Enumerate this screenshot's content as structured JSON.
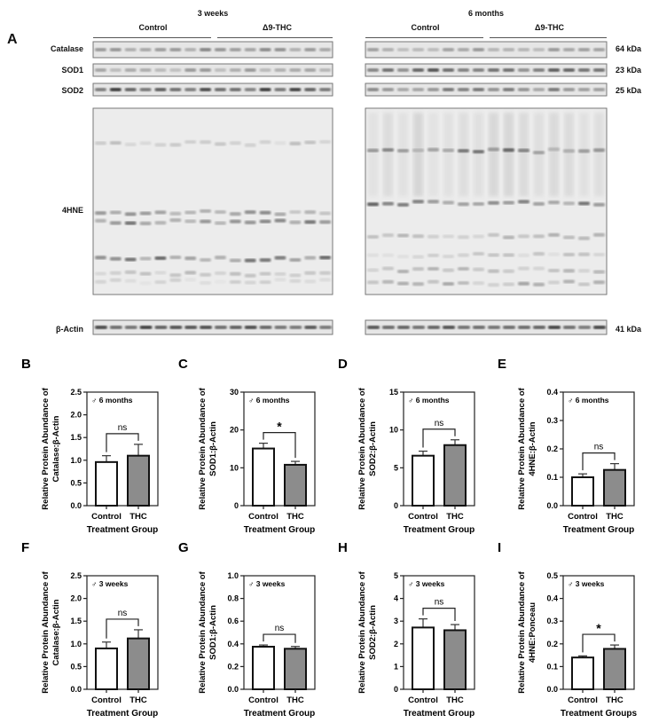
{
  "figure": {
    "panel_a_label": "A",
    "blots": {
      "left": {
        "timepoint": "3 weeks",
        "group_control": "Control",
        "group_thc": "Δ9-THC"
      },
      "right": {
        "timepoint": "6 months",
        "group_control": "Control",
        "group_thc": "Δ9-THC"
      },
      "rows": [
        {
          "label": "Catalase",
          "kda": "64 kDa"
        },
        {
          "label": "SOD1",
          "kda": "23 kDa"
        },
        {
          "label": "SOD2",
          "kda": "25 kDa"
        },
        {
          "label": "4HNE",
          "kda": ""
        },
        {
          "label": "β-Actin",
          "kda": "41 kDa"
        }
      ]
    }
  },
  "chart_data": [
    {
      "panel": "B",
      "type": "bar",
      "title": "♂ 6 months",
      "categories": [
        "Control",
        "THC"
      ],
      "values": [
        0.96,
        1.1
      ],
      "errors": [
        0.14,
        0.25
      ],
      "ylabel": "Relative Protein Abundance of Catalase:β-Actin",
      "xlabel": "Treatment Group",
      "ylim": [
        0,
        2.5
      ],
      "yticks": [
        "0.0",
        "0.5",
        "1.0",
        "1.5",
        "2.0",
        "2.5"
      ],
      "significance": "ns",
      "colors": [
        "#ffffff",
        "#8c8c8c"
      ]
    },
    {
      "panel": "C",
      "type": "bar",
      "title": "♂ 6 months",
      "categories": [
        "Control",
        "THC"
      ],
      "values": [
        15.1,
        10.8
      ],
      "errors": [
        1.4,
        0.9
      ],
      "ylabel": "Relative Protein Abundance of SOD1:β-Actin",
      "xlabel": "Treatment Group",
      "ylim": [
        0,
        30
      ],
      "yticks": [
        "0",
        "10",
        "20",
        "30"
      ],
      "significance": "*",
      "colors": [
        "#ffffff",
        "#8c8c8c"
      ]
    },
    {
      "panel": "D",
      "type": "bar",
      "title": "♂ 6 months",
      "categories": [
        "Control",
        "THC"
      ],
      "values": [
        6.6,
        8.0
      ],
      "errors": [
        0.6,
        0.7
      ],
      "ylabel": "Relative Protein Abundance of SOD2:β-Actin",
      "xlabel": "Treatment Group",
      "ylim": [
        0,
        15
      ],
      "yticks": [
        "0",
        "5",
        "10",
        "15"
      ],
      "significance": "ns",
      "colors": [
        "#ffffff",
        "#8c8c8c"
      ]
    },
    {
      "panel": "E",
      "type": "bar",
      "title": "♂ 6 months",
      "categories": [
        "Control",
        "THC"
      ],
      "values": [
        0.1,
        0.126
      ],
      "errors": [
        0.012,
        0.022
      ],
      "ylabel": "Relative Protein Abundance of 4HNE:β-Actin",
      "xlabel": "Treatment Group",
      "ylim": [
        0,
        0.4
      ],
      "yticks": [
        "0.0",
        "0.1",
        "0.2",
        "0.3",
        "0.4"
      ],
      "significance": "ns",
      "colors": [
        "#ffffff",
        "#8c8c8c"
      ]
    },
    {
      "panel": "F",
      "type": "bar",
      "title": "♂ 3 weeks",
      "categories": [
        "Control",
        "THC"
      ],
      "values": [
        0.9,
        1.12
      ],
      "errors": [
        0.14,
        0.19
      ],
      "ylabel": "Relative Protein Abundance of Catalase:β-Actin",
      "xlabel": "Treatment Group",
      "ylim": [
        0,
        2.5
      ],
      "yticks": [
        "0.0",
        "0.5",
        "1.0",
        "1.5",
        "2.0",
        "2.5"
      ],
      "significance": "ns",
      "colors": [
        "#ffffff",
        "#8c8c8c"
      ]
    },
    {
      "panel": "G",
      "type": "bar",
      "title": "♂ 3 weeks",
      "categories": [
        "Control",
        "THC"
      ],
      "values": [
        0.375,
        0.357
      ],
      "errors": [
        0.015,
        0.02
      ],
      "ylabel": "Relative Protein Abundance of SOD1:β-Actin",
      "xlabel": "Treatment Group",
      "ylim": [
        0,
        1.0
      ],
      "yticks": [
        "0.0",
        "0.2",
        "0.4",
        "0.6",
        "0.8",
        "1.0"
      ],
      "significance": "ns",
      "colors": [
        "#ffffff",
        "#8c8c8c"
      ]
    },
    {
      "panel": "H",
      "type": "bar",
      "title": "♂ 3 weeks",
      "categories": [
        "Control",
        "THC"
      ],
      "values": [
        2.72,
        2.6
      ],
      "errors": [
        0.38,
        0.25
      ],
      "ylabel": "Relative Protein Abundance of SOD2:β-Actin",
      "xlabel": "Treatment Group",
      "ylim": [
        0,
        5
      ],
      "yticks": [
        "0",
        "1",
        "2",
        "3",
        "4",
        "5"
      ],
      "significance": "ns",
      "colors": [
        "#ffffff",
        "#8c8c8c"
      ]
    },
    {
      "panel": "I",
      "type": "bar",
      "title": "♂ 3 weeks",
      "categories": [
        "Control",
        "THC"
      ],
      "values": [
        0.14,
        0.178
      ],
      "errors": [
        0.007,
        0.017
      ],
      "ylabel": "Relative Protein Abundance of 4HNE:Ponceau",
      "xlabel": "Treatment Groups",
      "ylim": [
        0,
        0.5
      ],
      "yticks": [
        "0.0",
        "0.1",
        "0.2",
        "0.3",
        "0.4",
        "0.5"
      ],
      "significance": "*",
      "colors": [
        "#ffffff",
        "#8c8c8c"
      ]
    }
  ]
}
